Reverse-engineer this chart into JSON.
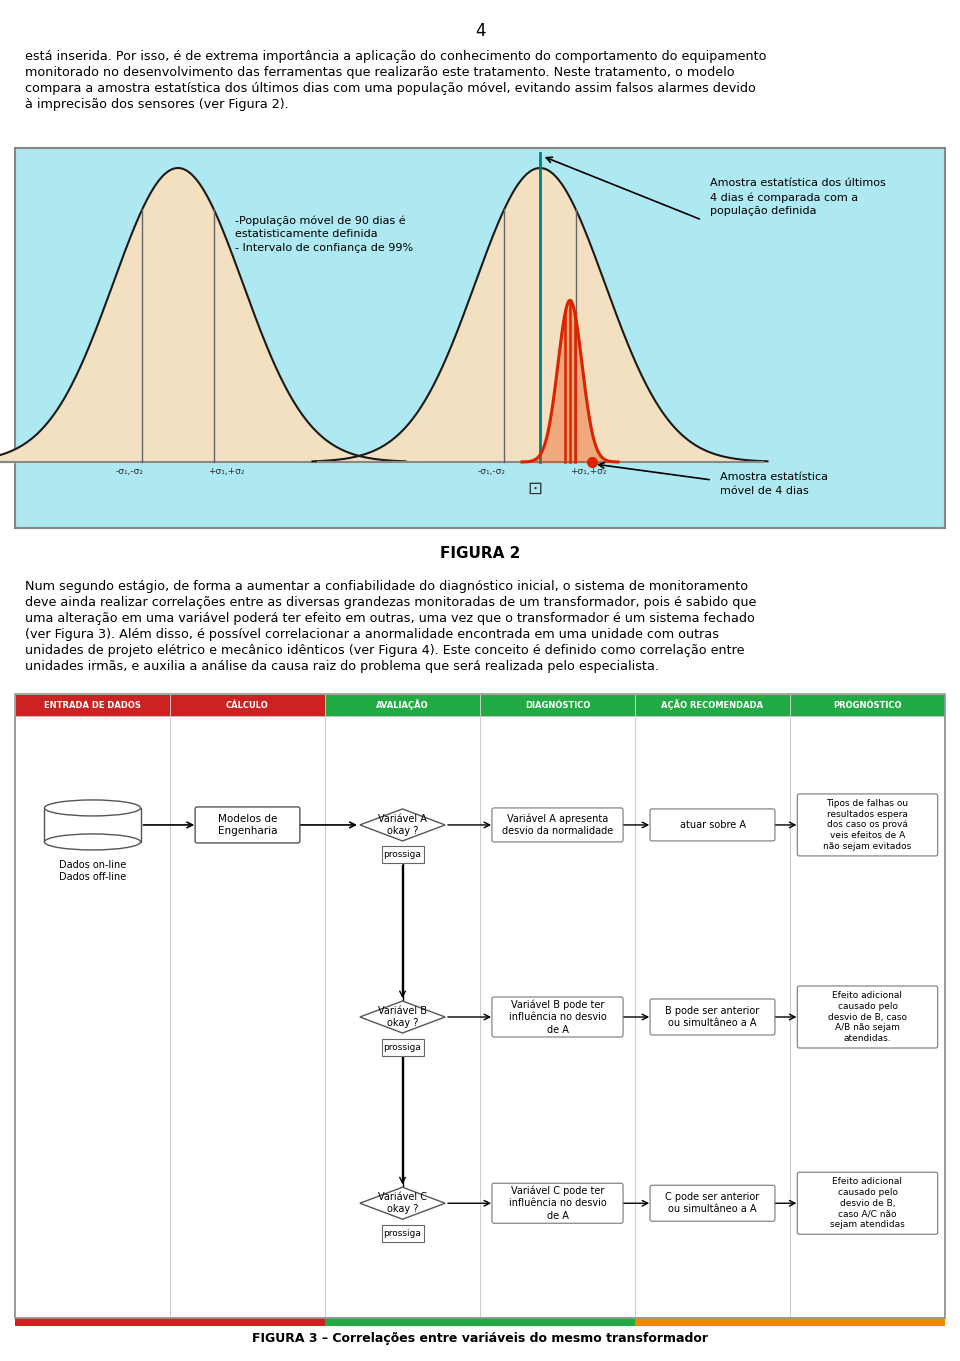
{
  "page_number": "4",
  "bg_color": "#ffffff",
  "figure_bg": "#aee8f0",
  "para1_lines": [
    "está inserida. Por isso, é de extrema importância a aplicação do conhecimento do comportamento do equipamento",
    "monitorado no desenvolvimento das ferramentas que realizarão este tratamento. Neste tratamento, o modelo",
    "compara a amostra estatística dos últimos dias com uma população móvel, evitando assim falsos alarmes devido",
    "à imprecisão dos sensores (ver Figura 2)."
  ],
  "figura2_label": "FIGURA 2",
  "left_annotation_line1": "-População móvel de 90 dias é",
  "left_annotation_line2": "estatisticamente definida",
  "left_annotation_line3": "- Intervalo de confiança de 99%",
  "right_annotation_top_line1": "Amostra estatística dos últimos",
  "right_annotation_top_line2": "4 dias é comparada com a",
  "right_annotation_top_line3": "população definida",
  "right_annotation_bottom_line1": "Amostra estatística",
  "right_annotation_bottom_line2": "móvel de 4 dias",
  "para2_lines": [
    "Num segundo estágio, de forma a aumentar a confiabilidade do diagnóstico inicial, o sistema de monitoramento",
    "deve ainda realizar correlações entre as diversas grandezas monitoradas de um transformador, pois é sabido que",
    "uma alteração em uma variável poderá ter efeito em outras, uma vez que o transformador é um sistema fechado",
    "(ver Figura 3). Além disso, é possível correlacionar a anormalidade encontrada em uma unidade com outras",
    "unidades de projeto elétrico e mecânico idênticos (ver Figura 4). Este conceito é definido como correlação entre",
    "unidades irmãs, e auxilia a análise da causa raiz do problema que será realizada pelo especialista."
  ],
  "flowchart_headers": [
    "ENTRADA DE DADOS",
    "CÁLCULO",
    "AVALIAÇÃO",
    "DIAGNÓSTICO",
    "AÇÃO RECOMENDADA",
    "PROGNÓSTICO"
  ],
  "header_colors_left": [
    "#cc2222",
    "#cc2222"
  ],
  "header_colors_right": [
    "#22aa44",
    "#22aa44",
    "#22aa44",
    "#22aa44"
  ],
  "figura3_label": "FIGURA 3 – Correlações entre variáveis do mesmo transformador",
  "sigma_left1": "-σ₁,-σ₂",
  "sigma_left2": "+σ₁,+σ₂",
  "sigma_right1": "-σ₁,-σ₂",
  "sigma_right2": "+σ₁,+σ₂",
  "gauss_fill": "#f2e0c0",
  "gauss_line": "#1a1a1a",
  "gauss_red": "#dd2200"
}
